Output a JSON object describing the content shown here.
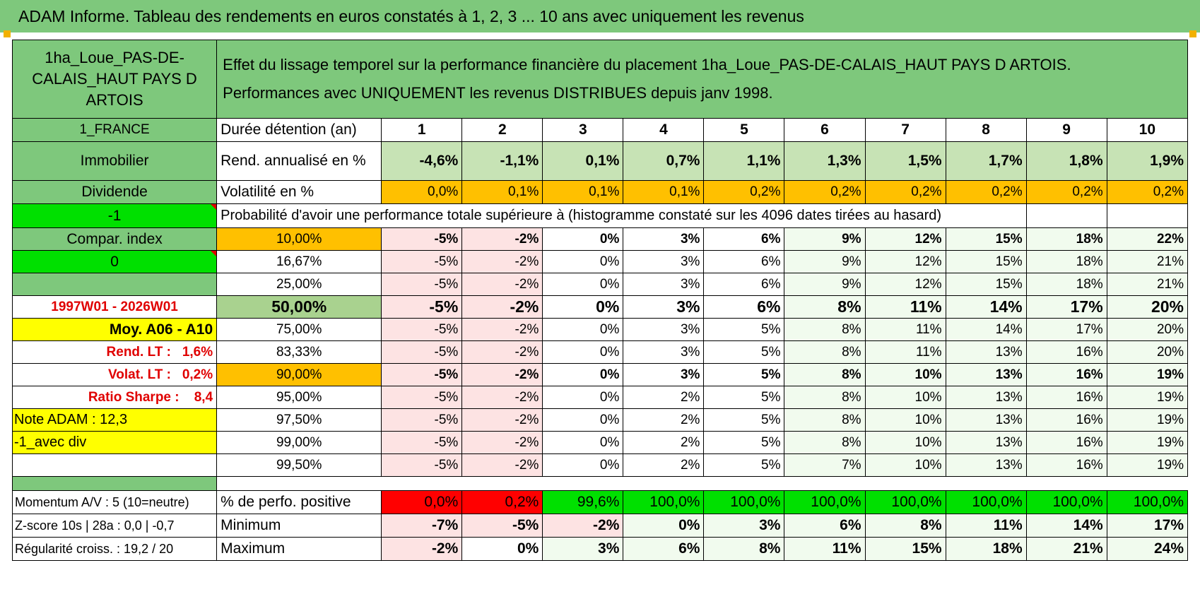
{
  "title": "ADAM Informe. Tableau des rendements en euros constatés à 1, 2, 3 ... 10 ans avec uniquement les revenus",
  "left_panel": {
    "asset_name": "1ha_Loue_PAS-DE-CALAIS_HAUT PAYS D ARTOIS",
    "country": "1_FRANCE",
    "category": "Immobilier",
    "mode": "Dividende",
    "flag_value": "-1",
    "compar_label": "Compar. index",
    "compar_value": "0",
    "period": "1997W01 - 2026W01",
    "moy_label": "Moy. A06 - A10",
    "rend_lt": "Rend. LT :   1,6%",
    "volat_lt": "Volat. LT :   0,2%",
    "sharpe": "Ratio Sharpe :    8,4",
    "note_adam": "Note ADAM : 12,3",
    "div_label": "-1_avec div",
    "momentum": "Momentum A/V : 5 (10=neutre)",
    "zscore": "Z-score 10s | 28a : 0,0 | -0,7",
    "regularite": "Régularité croiss. : 19,2 / 20"
  },
  "description": {
    "line1": "Effet du lissage temporel sur la performance financière du placement 1ha_Loue_PAS-DE-CALAIS_HAUT PAYS D ARTOIS.",
    "line2": "Performances avec UNIQUEMENT les revenus DISTRIBUES depuis janv 1998."
  },
  "years_label": "Durée détention (an)",
  "years": [
    "1",
    "2",
    "3",
    "4",
    "5",
    "6",
    "7",
    "8",
    "9",
    "10"
  ],
  "rend_label": "Rend. annualisé en %",
  "rend": [
    "-4,6%",
    "-1,1%",
    "0,1%",
    "0,7%",
    "1,1%",
    "1,3%",
    "1,5%",
    "1,7%",
    "1,8%",
    "1,9%"
  ],
  "vol_label": "Volatilité en %",
  "vol": [
    "0,0%",
    "0,1%",
    "0,1%",
    "0,1%",
    "0,2%",
    "0,2%",
    "0,2%",
    "0,2%",
    "0,2%",
    "0,2%"
  ],
  "prob_header": "Probabilité d'avoir une performance totale supérieure à (histogramme constaté sur les 4096 dates tirées au hasard)",
  "prob_rows": [
    {
      "p": "10,00%",
      "v": [
        "-5%",
        "-2%",
        "0%",
        "3%",
        "6%",
        "9%",
        "12%",
        "15%",
        "18%",
        "22%"
      ]
    },
    {
      "p": "16,67%",
      "v": [
        "-5%",
        "-2%",
        "0%",
        "3%",
        "6%",
        "9%",
        "12%",
        "15%",
        "18%",
        "21%"
      ]
    },
    {
      "p": "25,00%",
      "v": [
        "-5%",
        "-2%",
        "0%",
        "3%",
        "6%",
        "9%",
        "12%",
        "15%",
        "18%",
        "21%"
      ]
    },
    {
      "p": "50,00%",
      "v": [
        "-5%",
        "-2%",
        "0%",
        "3%",
        "6%",
        "8%",
        "11%",
        "14%",
        "17%",
        "20%"
      ]
    },
    {
      "p": "75,00%",
      "v": [
        "-5%",
        "-2%",
        "0%",
        "3%",
        "5%",
        "8%",
        "11%",
        "14%",
        "17%",
        "20%"
      ]
    },
    {
      "p": "83,33%",
      "v": [
        "-5%",
        "-2%",
        "0%",
        "3%",
        "5%",
        "8%",
        "11%",
        "13%",
        "16%",
        "20%"
      ]
    },
    {
      "p": "90,00%",
      "v": [
        "-5%",
        "-2%",
        "0%",
        "3%",
        "5%",
        "8%",
        "10%",
        "13%",
        "16%",
        "19%"
      ]
    },
    {
      "p": "95,00%",
      "v": [
        "-5%",
        "-2%",
        "0%",
        "2%",
        "5%",
        "8%",
        "10%",
        "13%",
        "16%",
        "19%"
      ]
    },
    {
      "p": "97,50%",
      "v": [
        "-5%",
        "-2%",
        "0%",
        "2%",
        "5%",
        "8%",
        "10%",
        "13%",
        "16%",
        "19%"
      ]
    },
    {
      "p": "99,00%",
      "v": [
        "-5%",
        "-2%",
        "0%",
        "2%",
        "5%",
        "8%",
        "10%",
        "13%",
        "16%",
        "19%"
      ]
    },
    {
      "p": "99,50%",
      "v": [
        "-5%",
        "-2%",
        "0%",
        "2%",
        "5%",
        "7%",
        "10%",
        "13%",
        "16%",
        "19%"
      ]
    }
  ],
  "positive_label": "% de perfo. positive",
  "positive": [
    "0,0%",
    "0,2%",
    "99,6%",
    "100,0%",
    "100,0%",
    "100,0%",
    "100,0%",
    "100,0%",
    "100,0%",
    "100,0%"
  ],
  "min_label": "Minimum",
  "min": [
    "-7%",
    "-5%",
    "-2%",
    "0%",
    "3%",
    "6%",
    "8%",
    "11%",
    "14%",
    "17%"
  ],
  "max_label": "Maximum",
  "max": [
    "-2%",
    "0%",
    "3%",
    "6%",
    "8%",
    "11%",
    "15%",
    "18%",
    "21%",
    "24%"
  ],
  "colors": {
    "header_green": "#7ec87c",
    "light_green": "#c7e3b5",
    "bright_green": "#00e000",
    "orange": "#ffc000",
    "yellow": "#ffff00",
    "red": "#ff0000",
    "pink": "#fde3e3"
  }
}
